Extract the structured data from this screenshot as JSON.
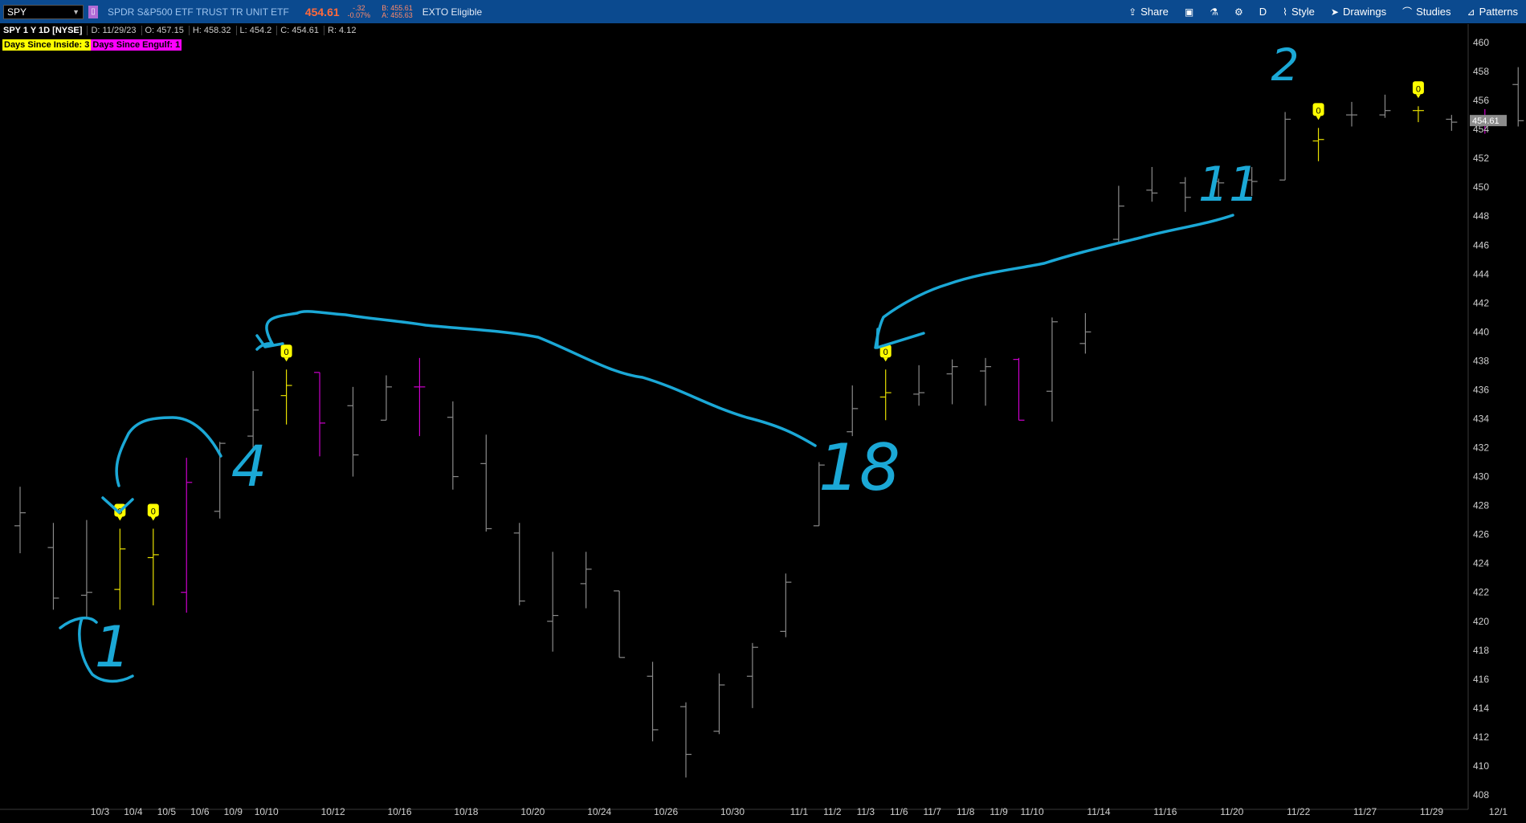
{
  "toolbar": {
    "symbol": "SPY",
    "description": "SPDR S&P500 ETF TRUST TR UNIT ETF",
    "last": "454.61",
    "change": "-.32",
    "change_pct": "-0.07%",
    "bid": "B: 455.61",
    "ask": "A: 455.63",
    "exto": "EXTO Eligible",
    "share": "Share",
    "period": "D",
    "style": "Style",
    "drawings": "Drawings",
    "studies": "Studies",
    "patterns": "Patterns"
  },
  "info": {
    "title": "SPY 1 Y 1D [NYSE]",
    "date": "D: 11/29/23",
    "open": "O: 457.15",
    "high": "H: 458.32",
    "low": "L: 454.2",
    "close": "C: 454.61",
    "range": "R: 4.12"
  },
  "badges": {
    "inside": "Days Since Inside: 3",
    "engulf": "Days Since Engulf: 1"
  },
  "price_tag": "454.61",
  "handwritten": [
    "1",
    "4",
    "18",
    "11",
    "2"
  ],
  "colors": {
    "bar": "#8a8a8a",
    "inside": "#e8e000",
    "engulf": "#cc00cc",
    "annotation": "#1ba8d6",
    "tag": "#ffff00"
  },
  "chart_data": {
    "type": "ohlc",
    "title": "",
    "ylim": [
      407,
      461
    ],
    "yticks": [
      408,
      410,
      412,
      414,
      416,
      418,
      420,
      422,
      424,
      426,
      428,
      430,
      432,
      434,
      436,
      438,
      440,
      442,
      444,
      446,
      448,
      450,
      452,
      454,
      456,
      458,
      460
    ],
    "xticks": [
      "10/3",
      "10/4",
      "10/5",
      "10/6",
      "10/9",
      "10/10",
      "10/12",
      "10/16",
      "10/18",
      "10/20",
      "10/24",
      "10/26",
      "10/30",
      "11/1",
      "11/2",
      "11/3",
      "11/6",
      "11/7",
      "11/8",
      "11/9",
      "11/10",
      "11/14",
      "11/16",
      "11/20",
      "11/22",
      "11/27",
      "11/29",
      "12/1"
    ],
    "bars": [
      {
        "o": 426.6,
        "h": 429.3,
        "l": 424.7,
        "c": 427.5,
        "t": "n"
      },
      {
        "o": 425.1,
        "h": 426.8,
        "l": 420.8,
        "c": 421.6,
        "t": "n"
      },
      {
        "o": 421.8,
        "h": 427.0,
        "l": 420.2,
        "c": 422.0,
        "t": "n"
      },
      {
        "o": 422.2,
        "h": 426.4,
        "l": 420.8,
        "c": 425.0,
        "t": "i"
      },
      {
        "o": 424.4,
        "h": 426.4,
        "l": 421.1,
        "c": 424.6,
        "t": "i"
      },
      {
        "o": 422.0,
        "h": 431.3,
        "l": 420.6,
        "c": 429.6,
        "t": "e"
      },
      {
        "o": 427.6,
        "h": 432.4,
        "l": 427.1,
        "c": 432.3,
        "t": "n"
      },
      {
        "o": 432.8,
        "h": 437.3,
        "l": 432.0,
        "c": 434.6,
        "t": "n"
      },
      {
        "o": 435.6,
        "h": 437.4,
        "l": 433.6,
        "c": 436.3,
        "t": "i"
      },
      {
        "o": 437.2,
        "h": 437.2,
        "l": 431.4,
        "c": 433.7,
        "t": "e"
      },
      {
        "o": 434.9,
        "h": 436.2,
        "l": 430.0,
        "c": 431.5,
        "t": "n"
      },
      {
        "o": 433.9,
        "h": 437.0,
        "l": 433.9,
        "c": 436.2,
        "t": "n"
      },
      {
        "o": 436.2,
        "h": 438.2,
        "l": 432.8,
        "c": 436.2,
        "t": "e"
      },
      {
        "o": 434.1,
        "h": 435.2,
        "l": 429.1,
        "c": 430.0,
        "t": "n"
      },
      {
        "o": 430.9,
        "h": 432.9,
        "l": 426.2,
        "c": 426.4,
        "t": "n"
      },
      {
        "o": 426.1,
        "h": 426.8,
        "l": 421.1,
        "c": 421.4,
        "t": "n"
      },
      {
        "o": 420.0,
        "h": 424.8,
        "l": 417.9,
        "c": 420.4,
        "t": "n"
      },
      {
        "o": 422.6,
        "h": 424.8,
        "l": 420.9,
        "c": 423.6,
        "t": "n"
      },
      {
        "o": 422.1,
        "h": 422.1,
        "l": 417.5,
        "c": 417.5,
        "t": "n"
      },
      {
        "o": 416.2,
        "h": 417.2,
        "l": 411.7,
        "c": 412.5,
        "t": "n"
      },
      {
        "o": 414.1,
        "h": 414.4,
        "l": 409.2,
        "c": 410.8,
        "t": "n"
      },
      {
        "o": 412.4,
        "h": 416.4,
        "l": 412.2,
        "c": 415.6,
        "t": "n"
      },
      {
        "o": 416.2,
        "h": 418.5,
        "l": 414.0,
        "c": 418.2,
        "t": "n"
      },
      {
        "o": 419.3,
        "h": 423.3,
        "l": 418.9,
        "c": 422.7,
        "t": "n"
      },
      {
        "o": 426.6,
        "h": 431.0,
        "l": 426.6,
        "c": 430.8,
        "t": "n"
      },
      {
        "o": 433.1,
        "h": 436.3,
        "l": 432.8,
        "c": 434.7,
        "t": "n"
      },
      {
        "o": 435.5,
        "h": 437.4,
        "l": 433.9,
        "c": 435.8,
        "t": "i"
      },
      {
        "o": 435.7,
        "h": 437.7,
        "l": 434.9,
        "c": 435.8,
        "t": "n"
      },
      {
        "o": 437.1,
        "h": 438.1,
        "l": 435.0,
        "c": 437.6,
        "t": "n"
      },
      {
        "o": 437.3,
        "h": 438.2,
        "l": 434.9,
        "c": 437.6,
        "t": "n"
      },
      {
        "o": 438.1,
        "h": 438.2,
        "l": 433.9,
        "c": 433.9,
        "t": "e"
      },
      {
        "o": 435.9,
        "h": 441.0,
        "l": 433.8,
        "c": 440.7,
        "t": "n"
      },
      {
        "o": 439.2,
        "h": 441.3,
        "l": 438.5,
        "c": 440.0,
        "t": "n"
      },
      {
        "o": 446.4,
        "h": 450.1,
        "l": 446.2,
        "c": 448.7,
        "t": "n"
      },
      {
        "o": 449.8,
        "h": 451.4,
        "l": 449.0,
        "c": 449.6,
        "t": "n"
      },
      {
        "o": 450.3,
        "h": 450.7,
        "l": 448.3,
        "c": 449.3,
        "t": "n"
      },
      {
        "o": 450.4,
        "h": 450.6,
        "l": 449.2,
        "c": 450.3,
        "t": "n"
      },
      {
        "o": 450.5,
        "h": 451.4,
        "l": 449.4,
        "c": 450.4,
        "t": "n"
      },
      {
        "o": 450.5,
        "h": 455.2,
        "l": 450.5,
        "c": 454.7,
        "t": "n"
      },
      {
        "o": 453.2,
        "h": 454.1,
        "l": 451.8,
        "c": 453.3,
        "t": "i"
      },
      {
        "o": 455.0,
        "h": 455.9,
        "l": 454.2,
        "c": 455.0,
        "t": "n"
      },
      {
        "o": 455.0,
        "h": 456.4,
        "l": 454.8,
        "c": 455.3,
        "t": "n"
      },
      {
        "o": 455.3,
        "h": 455.6,
        "l": 454.5,
        "c": 455.3,
        "t": "i"
      },
      {
        "o": 454.7,
        "h": 455.0,
        "l": 453.9,
        "c": 454.5,
        "t": "n"
      },
      {
        "o": 454.3,
        "h": 455.4,
        "l": 453.7,
        "c": 454.9,
        "t": "e"
      },
      {
        "o": 457.1,
        "h": 458.3,
        "l": 454.2,
        "c": 454.6,
        "t": "n"
      }
    ],
    "markers": [
      {
        "bar": 3,
        "label": "0"
      },
      {
        "bar": 4,
        "label": "0"
      },
      {
        "bar": 8,
        "label": "0"
      },
      {
        "bar": 26,
        "label": "0"
      },
      {
        "bar": 39,
        "label": "0"
      },
      {
        "bar": 42,
        "label": "0"
      }
    ]
  }
}
